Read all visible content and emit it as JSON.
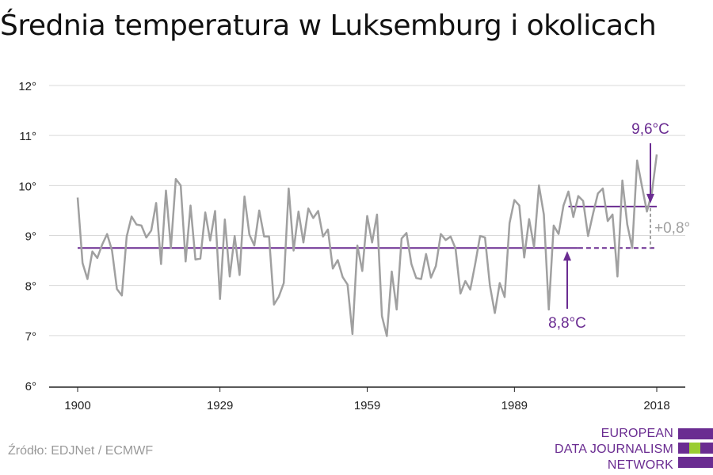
{
  "title": "Średnia temperatura w Luksemburg i okolicach",
  "source": "Źródło: EDJNet / ECMWF",
  "logo": {
    "lines": [
      "EUROPEAN",
      "DATA JOURNALISM",
      "NETWORK"
    ],
    "colors": {
      "purple": "#6a2c91",
      "green": "#9acd32"
    }
  },
  "colors": {
    "series": "#a0a0a0",
    "avg": "#6a2c91",
    "diff": "#a0a0a0",
    "grid": "#d9d9d9",
    "axis": "#222222"
  },
  "chart_data": {
    "type": "line",
    "title": "Średnia temperatura w Luksemburg i okolicach",
    "xlabel": "",
    "ylabel": "",
    "ylim": [
      6,
      12
    ],
    "xlim": [
      1900,
      2018
    ],
    "x_ticks": [
      1900,
      1929,
      1959,
      1989,
      2018
    ],
    "x_tick_labels": [
      "1900",
      "1929",
      "1959",
      "1989",
      "2018"
    ],
    "y_ticks": [
      6,
      7,
      8,
      9,
      10,
      11,
      12
    ],
    "y_tick_labels": [
      "6°",
      "7°",
      "8°",
      "9°",
      "10°",
      "11°",
      "12°"
    ],
    "grid": true,
    "series": [
      {
        "x": [
          1900,
          1901,
          1902,
          1903,
          1904,
          1905,
          1906,
          1907,
          1908,
          1909,
          1910,
          1911,
          1912,
          1913,
          1914,
          1915,
          1916,
          1917,
          1918,
          1919,
          1920,
          1921,
          1922,
          1923,
          1924,
          1925,
          1926,
          1927,
          1928,
          1929,
          1930,
          1931,
          1932,
          1933,
          1934,
          1935,
          1936,
          1937,
          1938,
          1939,
          1940,
          1941,
          1942,
          1943,
          1944,
          1945,
          1946,
          1947,
          1948,
          1949,
          1950,
          1951,
          1952,
          1953,
          1954,
          1955,
          1956,
          1957,
          1958,
          1959,
          1960,
          1961,
          1962,
          1963,
          1964,
          1965,
          1966,
          1967,
          1968,
          1969,
          1970,
          1971,
          1972,
          1973,
          1974,
          1975,
          1976,
          1977,
          1978,
          1979,
          1980,
          1981,
          1982,
          1983,
          1984,
          1985,
          1986,
          1987,
          1988,
          1989,
          1990,
          1991,
          1992,
          1993,
          1994,
          1995,
          1996,
          1997,
          1998,
          1999,
          2000,
          2001,
          2002,
          2003,
          2004,
          2005,
          2006,
          2007,
          2008,
          2009,
          2010,
          2011,
          2012,
          2013,
          2014,
          2015,
          2016,
          2017,
          2018
        ],
        "values": [
          9.76,
          8.45,
          8.13,
          8.68,
          8.55,
          8.82,
          9.03,
          8.7,
          7.93,
          7.8,
          8.98,
          9.38,
          9.22,
          9.2,
          8.96,
          9.1,
          9.65,
          8.43,
          9.9,
          8.75,
          10.13,
          10.0,
          8.48,
          9.6,
          8.52,
          8.54,
          9.46,
          8.9,
          9.49,
          7.73,
          9.32,
          8.18,
          8.99,
          8.21,
          9.78,
          9.02,
          8.8,
          9.5,
          8.98,
          8.98,
          7.62,
          7.78,
          8.05,
          9.94,
          8.7,
          9.48,
          8.86,
          9.54,
          9.35,
          9.49,
          8.98,
          9.12,
          8.34,
          8.51,
          8.17,
          8.02,
          7.03,
          8.8,
          8.29,
          9.39,
          8.86,
          9.42,
          7.39,
          6.99,
          8.28,
          7.52,
          8.94,
          9.05,
          8.43,
          8.15,
          8.13,
          8.63,
          8.16,
          8.39,
          9.03,
          8.91,
          8.98,
          8.74,
          7.84,
          8.09,
          7.92,
          8.43,
          8.99,
          8.96,
          8.0,
          7.45,
          8.05,
          7.77,
          9.25,
          9.71,
          9.6,
          8.56,
          9.33,
          8.77,
          10.0,
          9.42,
          7.52,
          9.2,
          9.03,
          9.6,
          9.88,
          9.37,
          9.79,
          9.69,
          8.99,
          9.43,
          9.84,
          9.94,
          9.29,
          9.42,
          8.18,
          10.1,
          9.22,
          8.75,
          10.5,
          9.98,
          9.48,
          9.85,
          10.62
        ]
      }
    ],
    "reference_lines": [
      {
        "label": "8,8°C",
        "value": 8.75,
        "from": 1900,
        "to": 2018,
        "solid_to": 2002
      },
      {
        "label": "9,6°C",
        "value": 9.58,
        "from": 2000,
        "to": 2018
      }
    ],
    "annotations": [
      {
        "label": "+0,8°",
        "x": 2018
      }
    ]
  }
}
